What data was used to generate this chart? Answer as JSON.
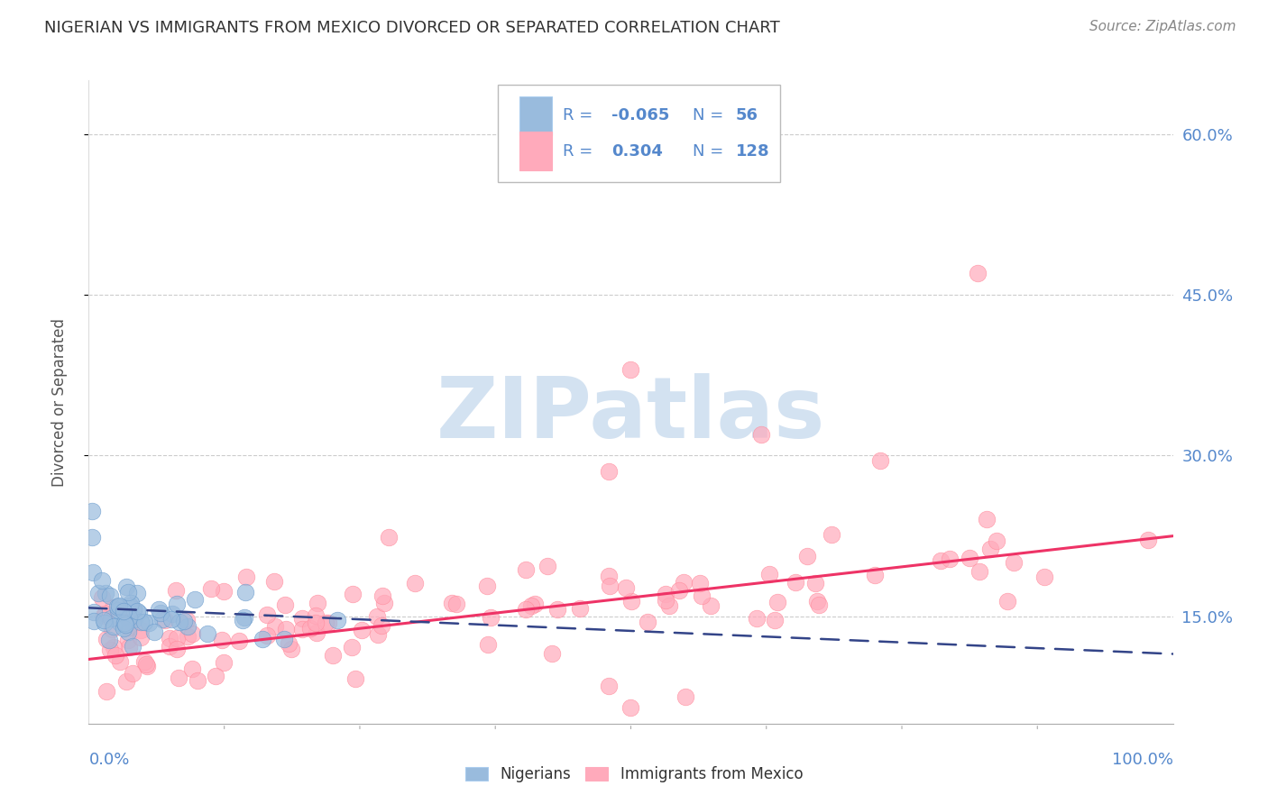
{
  "title": "NIGERIAN VS IMMIGRANTS FROM MEXICO DIVORCED OR SEPARATED CORRELATION CHART",
  "source": "Source: ZipAtlas.com",
  "ylabel": "Divorced or Separated",
  "blue_color": "#99BBDD",
  "pink_color": "#FFAABB",
  "blue_edge_color": "#6699CC",
  "pink_edge_color": "#FF8899",
  "blue_line_color": "#334488",
  "pink_line_color": "#EE3366",
  "blue_dash_color": "#88AACC",
  "watermark_color": "#CCDDEF",
  "watermark_text": "ZIPatlas",
  "grid_color": "#CCCCCC",
  "ytick_color": "#5588CC",
  "xtick_color": "#5588CC",
  "title_color": "#333333",
  "source_color": "#888888",
  "legend_text_color": "#5588CC",
  "legend_rv_color": "#5588CC",
  "xlim": [
    0,
    100
  ],
  "ylim": [
    5,
    65
  ],
  "yticks": [
    15,
    30,
    45,
    60
  ],
  "ytick_labels": [
    "15.0%",
    "30.0%",
    "45.0%",
    "60.0%"
  ],
  "pink_line_x": [
    0,
    100
  ],
  "pink_line_y_start": 11.0,
  "pink_line_y_end": 22.5,
  "blue_line_x": [
    0,
    100
  ],
  "blue_line_y_start": 15.8,
  "blue_line_y_end": 11.5
}
